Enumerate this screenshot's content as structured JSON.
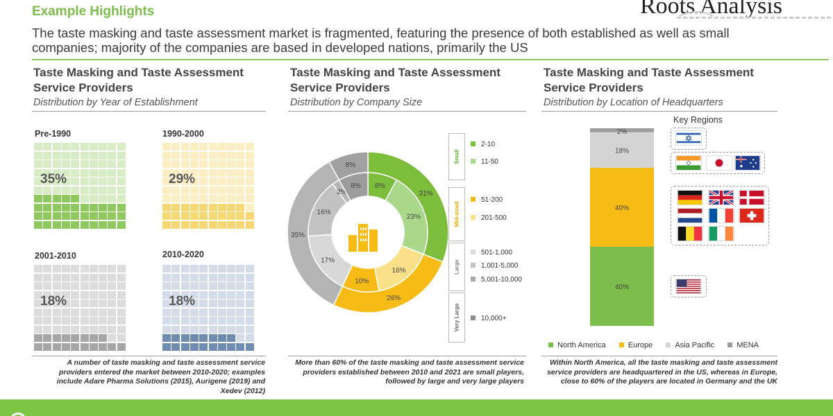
{
  "header": {
    "section_title": "Example Highlights",
    "brand": "Roots Analysis",
    "headline": "The taste masking and taste assessment market is fragmented, featuring the presence of both established as well as small companies; majority of the companies are based in developed nations, primarily the US"
  },
  "panels": [
    {
      "title": "Taste Masking and Taste Assessment Service Providers",
      "subtitle": "Distribution by Year of Establishment"
    },
    {
      "title": "Taste Masking and Taste Assessment Service Providers",
      "subtitle": "Distribution by Company Size"
    },
    {
      "title": "Taste Masking and Taste Assessment Service Providers",
      "subtitle": "Distribution by Location of Headquarters"
    }
  ],
  "footnotes": [
    "A number of taste masking and taste assessment service providers entered the market between 2010-2020; examples include Adare Pharma Solutions (2015), Aurigene (2019) and Xedev (2012)",
    "More than 60% of the taste masking and taste assessment service providers established between 2010 and 2021 are small players, followed by large and very large players",
    "Within North America, all the taste masking and taste assessment service providers are headquartered in the US, whereas in Europe, close to 60% of the players are located in Germany and the UK"
  ],
  "chart_data": [
    {
      "type": "waffle",
      "categories": [
        "Pre-1990",
        "1990-2000",
        "2001-2010",
        "2010-2020"
      ],
      "labels": [
        "35%",
        "29%",
        "18%",
        "18%"
      ],
      "values": [
        35,
        29,
        18,
        18
      ],
      "colors": [
        "#8fc85f",
        "#f5d774",
        "#a6a6a6",
        "#6f8bb0"
      ],
      "light_colors": [
        "#d7ecc4",
        "#fbeec2",
        "#dcdcdc",
        "#d3dce8"
      ]
    },
    {
      "type": "donut",
      "outer_ring": {
        "values": [
          31,
          26,
          35,
          8
        ],
        "labels": [
          "31%",
          "26%",
          "35%",
          "8%"
        ],
        "colors": [
          "#7dbd3c",
          "#f6bb14",
          "#b4b4b4",
          "#a0a0a0"
        ]
      },
      "inner_ring": {
        "values": [
          8,
          23,
          16,
          10,
          17,
          16,
          2,
          8
        ],
        "labels": [
          "8%",
          "23%",
          "16%",
          "10%",
          "17%",
          "16%",
          "2%",
          "8%"
        ],
        "colors": [
          "#7dbd3c",
          "#a9d88a",
          "#fbe08a",
          "#f6bb14",
          "#d8d8d8",
          "#c2c2c2",
          "#b4b4b4",
          "#9c9c9c"
        ]
      },
      "legend_groups": [
        {
          "name": "Small",
          "color": "#6ab43a",
          "items": [
            {
              "label": "2-10",
              "color": "#7dbd3c"
            },
            {
              "label": "11-50",
              "color": "#a9d88a"
            }
          ]
        },
        {
          "name": "Mid-sized",
          "color": "#e8a800",
          "items": [
            {
              "label": "51-200",
              "color": "#f6bb14"
            },
            {
              "label": "201-500",
              "color": "#fbe08a"
            }
          ]
        },
        {
          "name": "Large",
          "color": "#8a8a8a",
          "items": [
            {
              "label": "501-1,000",
              "color": "#dcdcdc"
            },
            {
              "label": "1,001-5,000",
              "color": "#c2c2c2"
            },
            {
              "label": "5,001-10,000",
              "color": "#a8a8a8"
            }
          ]
        },
        {
          "name": "Very Large",
          "color": "#6a6a6a",
          "items": [
            {
              "label": "10,000+",
              "color": "#8c8c8c"
            }
          ]
        }
      ]
    },
    {
      "type": "bar",
      "stacked": true,
      "series": [
        {
          "name": "North America",
          "values": [
            40
          ],
          "label": "40%",
          "color": "#7dbd4c"
        },
        {
          "name": "Europe",
          "values": [
            40
          ],
          "label": "40%",
          "color": "#f6bb14"
        },
        {
          "name": "Asia Pacific",
          "values": [
            18
          ],
          "label": "18%",
          "color": "#d4d4d4"
        },
        {
          "name": "MENA",
          "values": [
            2
          ],
          "label": "2%",
          "color": "#9c9c9c"
        }
      ],
      "ylim": [
        0,
        100
      ],
      "key_regions_title": "Key Regions",
      "flags": [
        "israel-flag",
        "india-flag",
        "japan-flag",
        "australia-flag",
        "germany-flag",
        "uk-flag",
        "denmark-flag",
        "netherlands-flag",
        "france-flag",
        "switzerland-flag",
        "belgium-flag",
        "ireland-flag",
        "usa-flag"
      ]
    }
  ]
}
